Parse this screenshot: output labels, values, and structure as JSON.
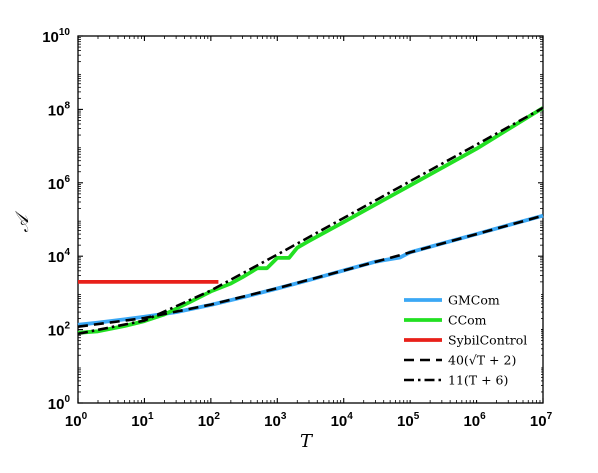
{
  "chart_data": {
    "type": "line",
    "title": "",
    "xlabel": "T",
    "ylabel": "𝒜",
    "x_scale": "log",
    "y_scale": "log",
    "xlim": [
      1,
      10000000
    ],
    "ylim": [
      1,
      10000000000
    ],
    "x_ticks": [
      {
        "value": 1,
        "base": "10",
        "exp": "0"
      },
      {
        "value": 10,
        "base": "10",
        "exp": "1"
      },
      {
        "value": 100,
        "base": "10",
        "exp": "2"
      },
      {
        "value": 1000,
        "base": "10",
        "exp": "3"
      },
      {
        "value": 10000,
        "base": "10",
        "exp": "4"
      },
      {
        "value": 100000,
        "base": "10",
        "exp": "5"
      },
      {
        "value": 1000000,
        "base": "10",
        "exp": "6"
      },
      {
        "value": 10000000,
        "base": "10",
        "exp": "7"
      }
    ],
    "y_ticks": [
      {
        "value": 1,
        "base": "10",
        "exp": "0"
      },
      {
        "value": 100,
        "base": "10",
        "exp": "2"
      },
      {
        "value": 10000,
        "base": "10",
        "exp": "4"
      },
      {
        "value": 1000000,
        "base": "10",
        "exp": "6"
      },
      {
        "value": 100000000,
        "base": "10",
        "exp": "8"
      },
      {
        "value": 10000000000,
        "base": "10",
        "exp": "10"
      }
    ],
    "grid": false,
    "legend_position": "bottom-right",
    "series": [
      {
        "name": "GMCom",
        "color": "#3ba8f5",
        "style": "solid",
        "x": [
          1,
          2,
          5,
          10,
          30,
          100,
          300,
          1000,
          3000,
          10000,
          30000,
          70000,
          100000,
          300000,
          1000000,
          3000000,
          10000000
        ],
        "y": [
          135,
          155,
          190,
          225,
          300,
          470,
          760,
          1320,
          2230,
          4100,
          7100,
          9200,
          12800,
          22000,
          40100,
          70000,
          127000
        ]
      },
      {
        "name": "CCom",
        "color": "#22e022",
        "style": "solid",
        "x": [
          1,
          2,
          5,
          10,
          20,
          50,
          100,
          200,
          300,
          500,
          700,
          1000,
          1500,
          2000,
          3000,
          10000,
          100000,
          1000000,
          10000000
        ],
        "y": [
          82,
          90,
          125,
          170,
          260,
          580,
          1100,
          1800,
          2700,
          4700,
          4700,
          9000,
          9000,
          17000,
          26000,
          85000,
          850000,
          8500000,
          110000000
        ]
      },
      {
        "name": "SybilControl",
        "color": "#e8201a",
        "style": "solid",
        "x": [
          1,
          130
        ],
        "y": [
          2000,
          2000
        ]
      },
      {
        "name": "40(√T + 2)",
        "color": "#000000",
        "style": "dashed",
        "x": [
          1,
          10,
          100,
          1000,
          10000,
          100000,
          1000000,
          10000000
        ],
        "y": [
          120,
          206.5,
          480,
          1344.9,
          4080,
          12729,
          40080,
          126571
        ]
      },
      {
        "name": "11(T + 6)",
        "color": "#000000",
        "style": "dashdot",
        "x": [
          1,
          10,
          100,
          1000,
          10000,
          100000,
          1000000,
          10000000
        ],
        "y": [
          77,
          176,
          1166,
          11066,
          110066,
          1100066,
          11000066,
          110000066
        ]
      }
    ]
  }
}
